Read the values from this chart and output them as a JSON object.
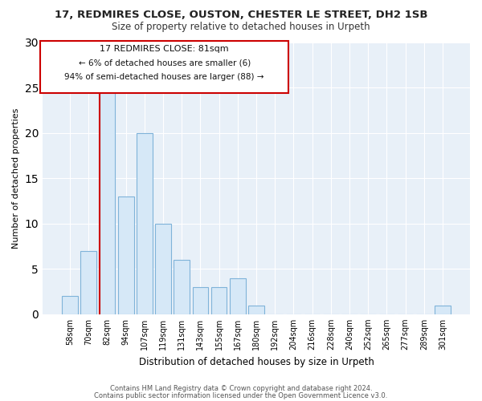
{
  "title1": "17, REDMIRES CLOSE, OUSTON, CHESTER LE STREET, DH2 1SB",
  "title2": "Size of property relative to detached houses in Urpeth",
  "xlabel": "Distribution of detached houses by size in Urpeth",
  "ylabel": "Number of detached properties",
  "bar_labels": [
    "58sqm",
    "70sqm",
    "82sqm",
    "94sqm",
    "107sqm",
    "119sqm",
    "131sqm",
    "143sqm",
    "155sqm",
    "167sqm",
    "180sqm",
    "192sqm",
    "204sqm",
    "216sqm",
    "228sqm",
    "240sqm",
    "252sqm",
    "265sqm",
    "277sqm",
    "289sqm",
    "301sqm"
  ],
  "bar_values": [
    2,
    7,
    25,
    13,
    20,
    10,
    6,
    3,
    3,
    4,
    1,
    0,
    0,
    0,
    0,
    0,
    0,
    0,
    0,
    0,
    1
  ],
  "bar_color": "#d6e8f7",
  "bar_edge_color": "#7fb3d9",
  "property_line_index": 2,
  "annotation_title": "17 REDMIRES CLOSE: 81sqm",
  "annotation_line1": "← 6% of detached houses are smaller (6)",
  "annotation_line2": "94% of semi-detached houses are larger (88) →",
  "annotation_box_edge": "#cc0000",
  "property_line_color": "#cc0000",
  "ylim": [
    0,
    30
  ],
  "yticks": [
    0,
    5,
    10,
    15,
    20,
    25,
    30
  ],
  "footer1": "Contains HM Land Registry data © Crown copyright and database right 2024.",
  "footer2": "Contains public sector information licensed under the Open Government Licence v3.0.",
  "background_color": "#ffffff",
  "plot_bg_color": "#e8f0f8",
  "grid_color": "#ffffff",
  "title1_fontsize": 9.5,
  "title2_fontsize": 8.5,
  "ylabel_fontsize": 8,
  "xlabel_fontsize": 8.5,
  "tick_fontsize": 7,
  "ann_title_fontsize": 8,
  "ann_line_fontsize": 7.5,
  "footer_fontsize": 6
}
